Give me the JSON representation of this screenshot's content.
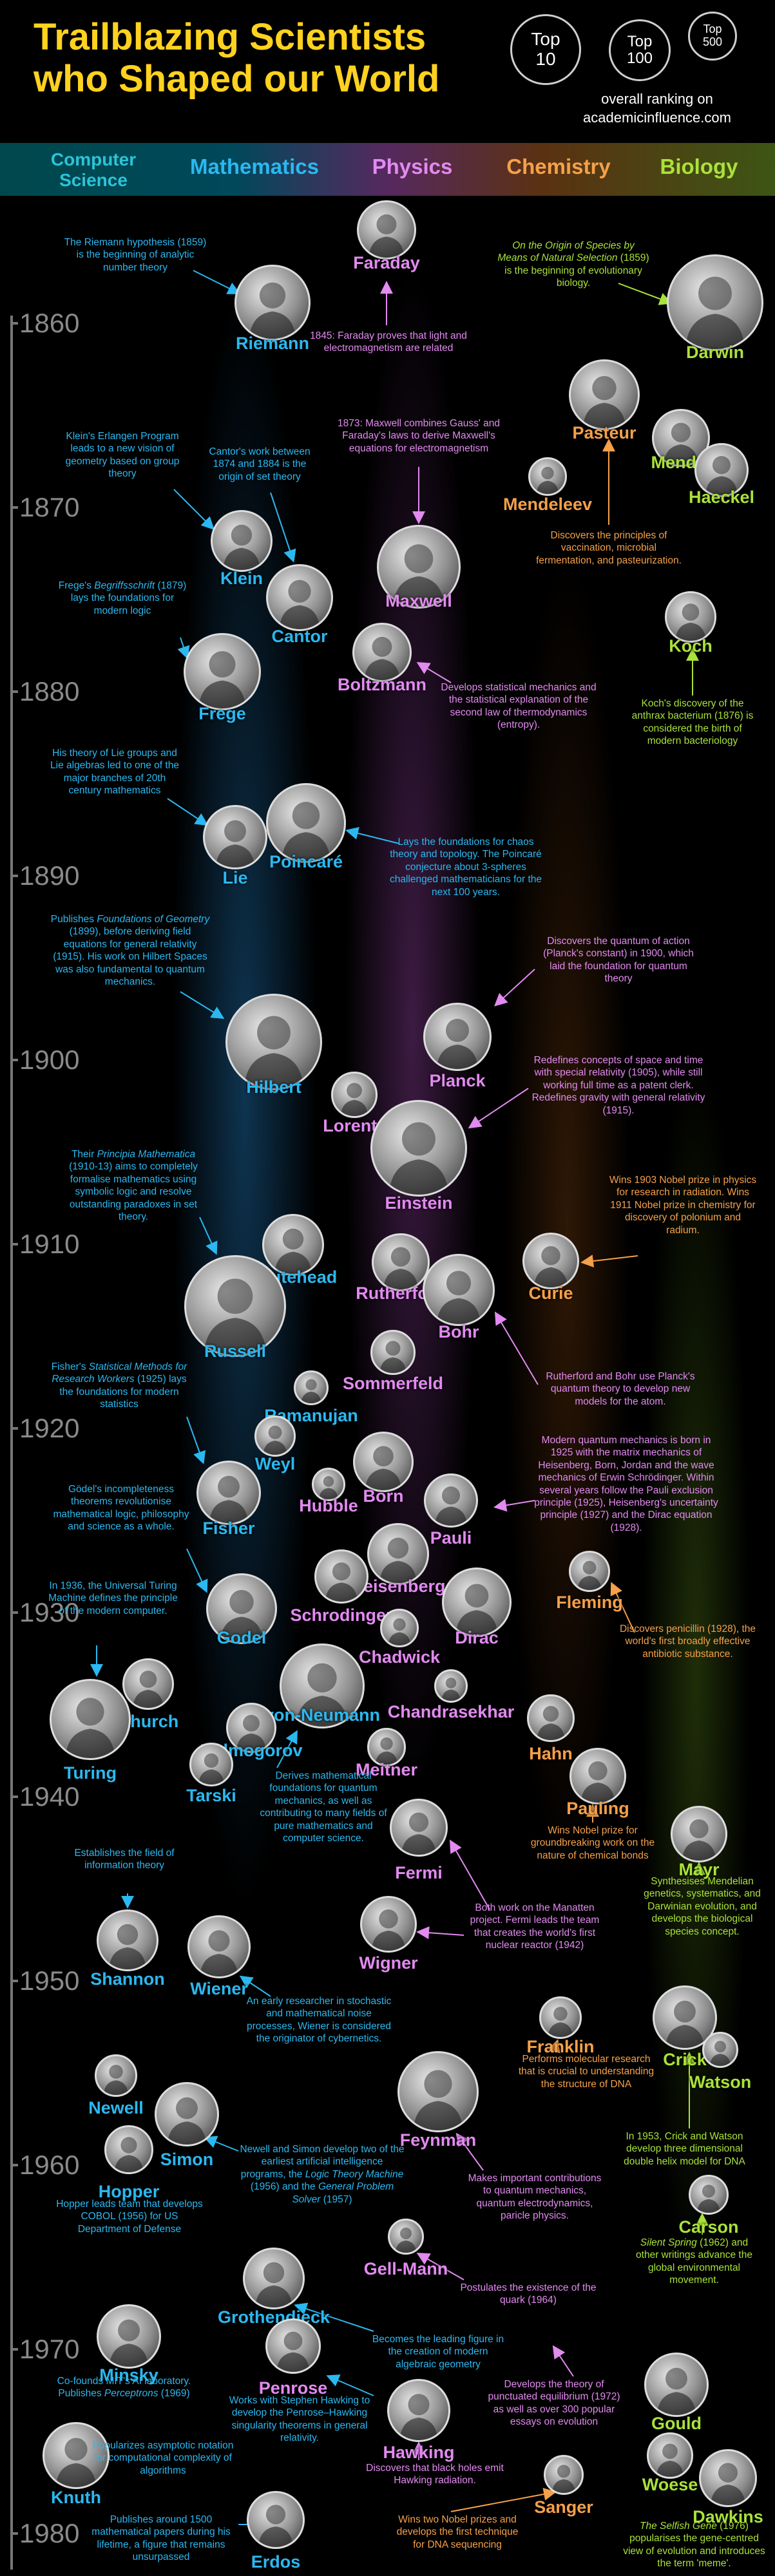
{
  "header": {
    "title_line1": "Trailblazing Scientists",
    "title_line2": "who Shaped our World",
    "rank_top10_a": "Top",
    "rank_top10_b": "10",
    "rank_top100_a": "Top",
    "rank_top100_b": "100",
    "rank_top500_a": "Top",
    "rank_top500_b": "500",
    "caption_line1": "overall ranking on",
    "caption_line2": "academicinfluence.com"
  },
  "categories": {
    "cs_line1": "Computer",
    "cs_line2": "Science",
    "math": "Mathematics",
    "physics": "Physics",
    "chemistry": "Chemistry",
    "biology": "Biology"
  },
  "colors": {
    "title": "#ffd21f",
    "cs": "#2bc4d8",
    "math": "#2bb8f0",
    "physics": "#e28af0",
    "chemistry": "#f5a04a",
    "biology": "#a9e23a"
  },
  "years": [
    "1860",
    "1870",
    "1880",
    "1890",
    "1900",
    "1910",
    "1920",
    "1930",
    "1940",
    "1950",
    "1960",
    "1970",
    "1980"
  ],
  "names": {
    "faraday": "Faraday",
    "riemann": "Riemann",
    "darwin": "Darwin",
    "pasteur": "Pasteur",
    "mendel": "Mendel",
    "haeckel": "Haeckel",
    "mendeleev": "Mendeleev",
    "klein": "Klein",
    "cantor": "Cantor",
    "maxwell": "Maxwell",
    "koch": "Koch",
    "frege": "Frege",
    "boltzmann": "Boltzmann",
    "lie": "Lie",
    "poincare": "Poincaré",
    "hilbert": "Hilbert",
    "planck": "Planck",
    "lorentz": "Lorentz",
    "einstein": "Einstein",
    "whitehead": "Whitehead",
    "curie": "Curie",
    "rutherford": "Rutherford",
    "russell": "Russell",
    "bohr": "Bohr",
    "sommerfeld": "Sommerfeld",
    "ramanujan": "Ramanujan",
    "weyl": "Weyl",
    "hubble": "Hubble",
    "born": "Born",
    "fisher": "Fisher",
    "pauli": "Pauli",
    "heisenberg": "Heisenberg",
    "schrodinger": "Schrodinger",
    "fleming": "Fleming",
    "godel": "Godel",
    "dirac": "Dirac",
    "chadwick": "Chadwick",
    "church": "Church",
    "turing": "Turing",
    "von_neumann": "von-Neumann",
    "chandrasekhar": "Chandrasekhar",
    "kolmogorov": "Kolmogorov",
    "hahn": "Hahn",
    "tarski": "Tarski",
    "meitner": "Meitner",
    "pauling": "Pauling",
    "fermi": "Fermi",
    "mayr": "Mayr",
    "wigner": "Wigner",
    "shannon": "Shannon",
    "wiener": "Wiener",
    "franklin": "Franklin",
    "crick": "Crick",
    "watson": "Watson",
    "newell": "Newell",
    "feynman": "Feynman",
    "simon": "Simon",
    "hopper": "Hopper",
    "carson": "Carson",
    "gell_mann": "Gell-Mann",
    "grothendieck": "Grothendieck",
    "minsky": "Minsky",
    "penrose": "Penrose",
    "gould": "Gould",
    "hawking": "Hawking",
    "knuth": "Knuth",
    "woese": "Woese",
    "dawkins": "Dawkins",
    "sanger": "Sanger",
    "erdos": "Erdos"
  },
  "notes": {
    "riemann": "The Riemann hypothesis (1859) is the beginning of analytic number theory",
    "faraday": "1845: Faraday proves that light and electromagnetism are related",
    "darwin_title": "On the Origin of Species by Means of Natural Selection",
    "darwin_rest": "(1859) is the beginning of evolutionary biology.",
    "klein": "Klein's Erlangen Program leads to a new vision of geometry based on group theory",
    "cantor": "Cantor's work between 1874 and 1884 is the origin of set theory",
    "maxwell": "1873: Maxwell combines Gauss' and Faraday's laws to derive Maxwell's equations for electromagnetism",
    "pasteur": "Discovers the principles of vaccination, microbial fermentation, and pasteurization.",
    "frege_pre": "Frege's",
    "frege_title": "Begriffsschrift",
    "frege_rest": "(1879) lays the foundations for modern logic",
    "boltzmann": "Develops statistical mechanics and the statistical explanation of the second law of thermodynamics (entropy).",
    "koch": "Koch's discovery of the anthrax bacterium (1876) is considered the birth of modern bacteriology",
    "lie": "His theory of Lie groups and Lie algebras led to one of the major branches of 20th century mathematics",
    "poincare": "Lays the foundations for chaos theory and topology. The Poincaré conjecture about 3-spheres challenged mathematicians for the next 100 years.",
    "hilbert_pre": "Publishes",
    "hilbert_title": "Foundations of Geometry",
    "hilbert_rest": "(1899), before deriving field equations for general relativity (1915). His work on Hilbert Spaces was also fundamental to quantum mechanics.",
    "planck": "Discovers the quantum of action (Planck's constant) in 1900, which laid the foundation for quantum theory",
    "einstein": "Redefines concepts of space and time with special relativity (1905), while still working full time as a patent clerk. Redefines gravity with general relativity (1915).",
    "russell_pre": "Their",
    "russell_title": "Principia Mathematica",
    "russell_rest": "(1910-13) aims to completely formalise mathematics using symbolic logic and resolve outstanding paradoxes in set theory.",
    "curie": "Wins 1903 Nobel prize in physics for research in radiation. Wins 1911 Nobel prize in chemistry for discovery of polonium and radium.",
    "bohr": "Rutherford and Bohr use Planck's quantum theory to develop new models for the atom.",
    "fisher_pre": "Fisher's",
    "fisher_title": "Statistical Methods for Research Workers",
    "fisher_rest": "(1925) lays the foundations for modern statistics",
    "quantum": "Modern quantum mechanics is born in 1925 with the matrix mechanics of Heisenberg, Born, Jordan and the wave mechanics of Erwin Schrödinger. Within several years follow the Pauli exclusion principle (1925), Heisenberg's uncertainty principle (1927) and the Dirac equation (1928).",
    "godel": "Gödel's incompleteness theorems revolutionise mathematical logic, philosophy and science as a whole.",
    "turing": "In 1936, the Universal Turing Machine defines the principle of the modern computer.",
    "fleming": "Discovers penicillin (1928), the world's first broadly effective antibiotic substance.",
    "von_neumann": "Derives mathematical foundations for quantum mechanics, as well as contributing to many fields of pure mathematics and computer science.",
    "pauling": "Wins Nobel prize for groundbreaking work on the nature of chemical bonds",
    "shannon": "Establishes the field of information theory",
    "mayr": "Synthesises Mendelian genetics, systematics, and Darwinian evolution, and develops the biological species concept.",
    "fermi": "Both work on the Manatten project. Fermi leads the team that creates the world's first nuclear reactor (1942)",
    "wiener": "An early researcher in stochastic and mathematical noise processes, Wiener is considered the originator of cybernetics.",
    "franklin": "Performs molecular research that is crucial to understanding the structure of DNA",
    "crick": "In 1953, Crick and Watson develop three dimensional double helix model for DNA",
    "simon_a": "Newell and Simon develop two of the earliest artificial intelligence programs, the",
    "simon_t1": "Logic Theory Machine",
    "simon_b": "(1956) and the",
    "simon_t2": "General Problem Solver",
    "simon_c": "(1957)",
    "feynman": "Makes important contributions to quantum mechanics, quantum electrodynamics, paricle physics.",
    "hopper": "Hopper leads team that develops COBOL (1956) for US Department of Defense",
    "carson_title": "Silent Spring",
    "carson_rest": "(1962) and other writings advance the global environmental movement.",
    "gell_mann": "Postulates the existence of the quark (1964)",
    "grothendieck": "Becomes the leading figure in the creation of modern algebraic geometry",
    "minsky_a": "Co-founds MIT's AI laboratory. Publishes",
    "minsky_title": "Perceptrons",
    "minsky_b": "(1969)",
    "hawking": "Works with Stephen Hawking to develop the Penrose–Hawking singularity theorems in general relativity.",
    "gould": "Develops the theory of punctuated equilibrium (1972) as well as over 300 popular essays on evolution",
    "knuth": "Popularizes asymptotic notation for computational complexity of algorithms",
    "black_holes": "Discovers that black holes emit Hawking radiation.",
    "sanger": "Wins two Nobel prizes and develops the first technique for DNA sequencing",
    "erdos": "Publishes around 1500 mathematical papers during his lifetime, a figure that remains unsurpassed",
    "dawkins_title": "The Selfish Gene",
    "dawkins_rest": "(1976) popularises the gene-centred view of evolution and introduces the term 'meme'."
  }
}
